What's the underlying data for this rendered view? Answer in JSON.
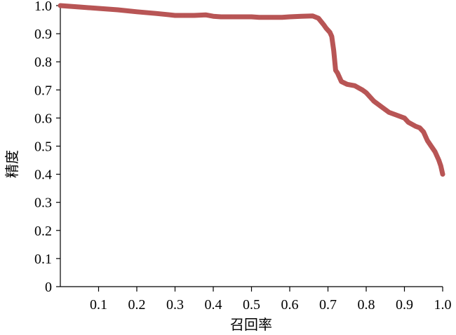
{
  "chart_data": {
    "type": "line",
    "xlabel": "召回率",
    "ylabel": "精度",
    "xlim": [
      0,
      1.0
    ],
    "ylim": [
      0,
      1.0
    ],
    "x_ticks": [
      0.1,
      0.2,
      0.3,
      0.4,
      0.5,
      0.6,
      0.7,
      0.8,
      0.9,
      1.0
    ],
    "x_tick_labels": [
      "0.1",
      "0.2",
      "0.3",
      "0.4",
      "0.5",
      "0.6",
      "0.7",
      "0.8",
      "0.9",
      "1.0"
    ],
    "y_ticks": [
      0,
      0.1,
      0.2,
      0.3,
      0.4,
      0.5,
      0.6,
      0.7,
      0.8,
      0.9,
      1.0
    ],
    "y_tick_labels": [
      "0",
      "0.1",
      "0.2",
      "0.3",
      "0.4",
      "0.5",
      "0.6",
      "0.7",
      "0.8",
      "0.9",
      "1.0"
    ],
    "grid": false,
    "legend": "none",
    "series_color": "#B85555",
    "series": [
      {
        "x": [
          0.0,
          0.05,
          0.1,
          0.15,
          0.2,
          0.25,
          0.28,
          0.3,
          0.32,
          0.35,
          0.38,
          0.4,
          0.42,
          0.45,
          0.5,
          0.52,
          0.55,
          0.58,
          0.6,
          0.63,
          0.66,
          0.675,
          0.69,
          0.695,
          0.705,
          0.71,
          0.715,
          0.72,
          0.725,
          0.735,
          0.75,
          0.77,
          0.79,
          0.8,
          0.82,
          0.84,
          0.86,
          0.88,
          0.89,
          0.9,
          0.91,
          0.93,
          0.94,
          0.95,
          0.96,
          0.97,
          0.98,
          0.99,
          0.995,
          1.0
        ],
        "y": [
          1.0,
          0.995,
          0.99,
          0.985,
          0.978,
          0.972,
          0.968,
          0.965,
          0.965,
          0.965,
          0.967,
          0.962,
          0.96,
          0.96,
          0.96,
          0.958,
          0.958,
          0.958,
          0.96,
          0.962,
          0.963,
          0.955,
          0.93,
          0.92,
          0.905,
          0.89,
          0.84,
          0.77,
          0.76,
          0.73,
          0.72,
          0.715,
          0.7,
          0.69,
          0.66,
          0.64,
          0.62,
          0.61,
          0.605,
          0.6,
          0.585,
          0.57,
          0.565,
          0.55,
          0.52,
          0.5,
          0.48,
          0.45,
          0.43,
          0.4
        ]
      }
    ]
  }
}
